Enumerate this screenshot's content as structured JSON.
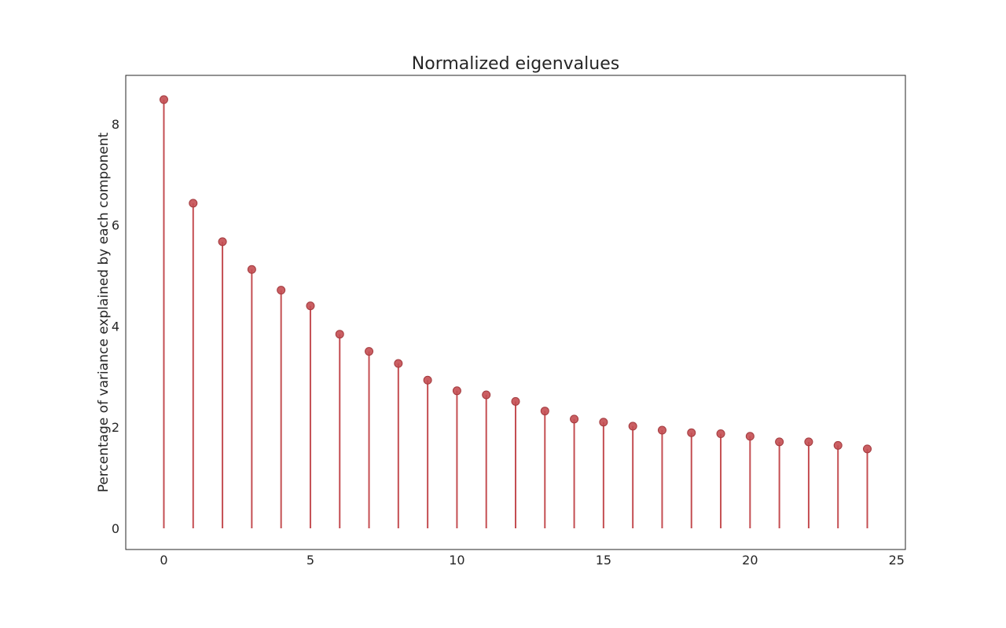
{
  "chart_data": {
    "type": "scatter",
    "style": "stem",
    "title": "Normalized eigenvalues",
    "xlabel": "",
    "ylabel": "Percentage of variance explained by each component",
    "x": [
      0,
      1,
      2,
      3,
      4,
      5,
      6,
      7,
      8,
      9,
      10,
      11,
      12,
      13,
      14,
      15,
      16,
      17,
      18,
      19,
      20,
      21,
      22,
      23,
      24
    ],
    "y": [
      8.48,
      6.43,
      5.67,
      5.12,
      4.71,
      4.4,
      3.84,
      3.5,
      3.26,
      2.93,
      2.72,
      2.64,
      2.51,
      2.32,
      2.16,
      2.1,
      2.02,
      1.94,
      1.89,
      1.87,
      1.82,
      1.71,
      1.71,
      1.64,
      1.57
    ],
    "xlim": [
      -1.3,
      25.3
    ],
    "ylim": [
      -0.42,
      8.96
    ],
    "xticks": [
      0,
      5,
      10,
      15,
      20,
      25
    ],
    "yticks": [
      0,
      2,
      4,
      6,
      8
    ],
    "grid": false,
    "color": "#c44e52"
  }
}
